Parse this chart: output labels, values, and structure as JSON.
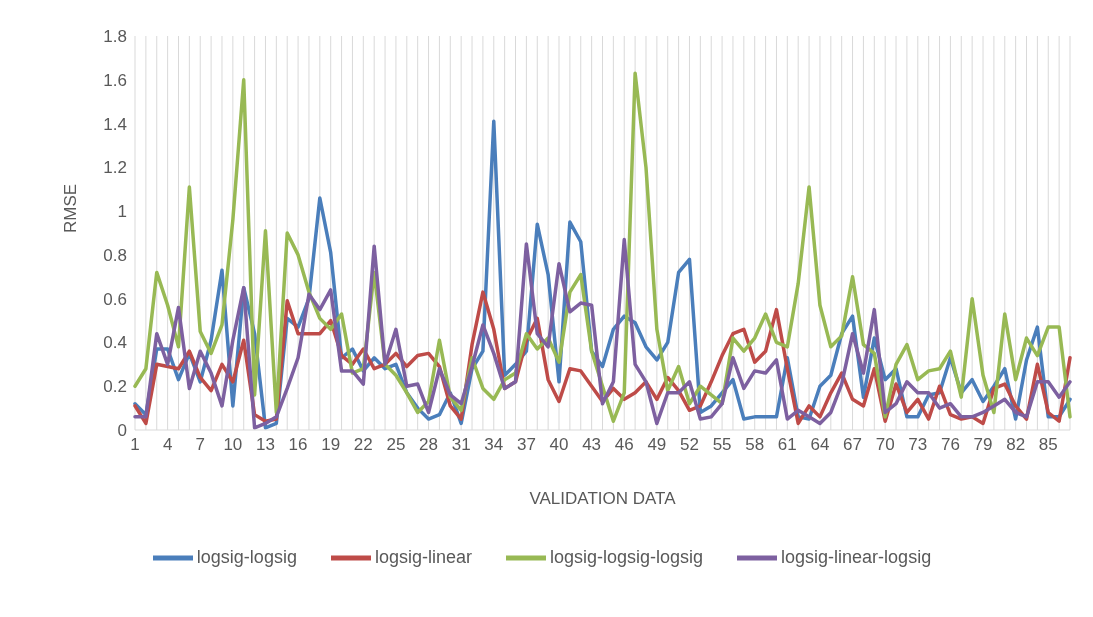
{
  "chart_data": {
    "type": "line",
    "xlabel": "VALIDATION DATA",
    "ylabel": "RMSE",
    "categories": [
      "1",
      null,
      null,
      "4",
      null,
      null,
      "7",
      null,
      null,
      "10",
      null,
      null,
      "13",
      null,
      null,
      "16",
      null,
      null,
      "19",
      null,
      null,
      "22",
      null,
      null,
      "25",
      null,
      null,
      "28",
      null,
      null,
      "31",
      null,
      null,
      "34",
      null,
      null,
      "37",
      null,
      null,
      "40",
      null,
      null,
      "43",
      null,
      null,
      "46",
      null,
      null,
      "49",
      null,
      null,
      "52",
      null,
      null,
      "55",
      null,
      null,
      "58",
      null,
      null,
      "61",
      null,
      null,
      "64",
      null,
      null,
      "67",
      null,
      null,
      "70",
      null,
      null,
      "73",
      null,
      null,
      "76",
      null,
      null,
      "79",
      null,
      null,
      "82",
      null,
      null,
      "85",
      null,
      null
    ],
    "series": [
      {
        "name": "logsig-logsig",
        "color": "#4a7ebb",
        "values": [
          0.12,
          0.07,
          0.37,
          0.37,
          0.23,
          0.35,
          0.22,
          0.41,
          0.73,
          0.11,
          0.65,
          0.44,
          0.01,
          0.03,
          0.51,
          0.47,
          0.6,
          1.06,
          0.81,
          0.33,
          0.37,
          0.27,
          0.33,
          0.28,
          0.3,
          0.17,
          0.1,
          0.05,
          0.07,
          0.17,
          0.03,
          0.28,
          0.36,
          1.41,
          0.25,
          0.3,
          0.36,
          0.94,
          0.71,
          0.22,
          0.95,
          0.86,
          0.36,
          0.29,
          0.46,
          0.52,
          0.49,
          0.38,
          0.32,
          0.4,
          0.72,
          0.78,
          0.08,
          0.11,
          0.17,
          0.23,
          0.05,
          0.06,
          0.06,
          0.06,
          0.33,
          0.06,
          0.05,
          0.2,
          0.25,
          0.44,
          0.52,
          0.15,
          0.42,
          0.23,
          0.28,
          0.06,
          0.06,
          0.16,
          0.17,
          0.33,
          0.17,
          0.23,
          0.13,
          0.2,
          0.28,
          0.05,
          0.32,
          0.47,
          0.06,
          0.06,
          0.14
        ]
      },
      {
        "name": "logsig-linear",
        "color": "#be4b48",
        "values": [
          0.11,
          0.03,
          0.3,
          0.29,
          0.28,
          0.36,
          0.24,
          0.18,
          0.3,
          0.22,
          0.41,
          0.07,
          0.04,
          0.05,
          0.59,
          0.44,
          0.44,
          0.44,
          0.5,
          0.34,
          0.3,
          0.37,
          0.28,
          0.3,
          0.35,
          0.29,
          0.34,
          0.35,
          0.29,
          0.11,
          0.05,
          0.39,
          0.63,
          0.46,
          0.19,
          0.22,
          0.41,
          0.51,
          0.23,
          0.13,
          0.28,
          0.27,
          0.2,
          0.13,
          0.19,
          0.14,
          0.17,
          0.22,
          0.14,
          0.24,
          0.18,
          0.09,
          0.11,
          0.22,
          0.34,
          0.44,
          0.46,
          0.31,
          0.36,
          0.55,
          0.28,
          0.03,
          0.11,
          0.06,
          0.17,
          0.26,
          0.14,
          0.11,
          0.28,
          0.04,
          0.21,
          0.08,
          0.14,
          0.05,
          0.2,
          0.07,
          0.05,
          0.06,
          0.03,
          0.19,
          0.21,
          0.11,
          0.05,
          0.3,
          0.08,
          0.04,
          0.33
        ]
      },
      {
        "name": "logsig-logsig-logsig",
        "color": "#98b954",
        "values": [
          0.2,
          0.28,
          0.72,
          0.57,
          0.38,
          1.11,
          0.45,
          0.35,
          0.48,
          0.96,
          1.6,
          0.16,
          0.91,
          0.08,
          0.9,
          0.8,
          0.63,
          0.51,
          0.46,
          0.53,
          0.26,
          0.28,
          0.72,
          0.3,
          0.25,
          0.17,
          0.08,
          0.13,
          0.41,
          0.15,
          0.09,
          0.33,
          0.19,
          0.14,
          0.23,
          0.26,
          0.44,
          0.37,
          0.42,
          0.31,
          0.63,
          0.71,
          0.36,
          0.2,
          0.04,
          0.17,
          1.63,
          1.2,
          0.46,
          0.18,
          0.29,
          0.12,
          0.2,
          0.16,
          0.12,
          0.42,
          0.36,
          0.42,
          0.53,
          0.4,
          0.38,
          0.67,
          1.11,
          0.57,
          0.38,
          0.43,
          0.7,
          0.39,
          0.35,
          0.06,
          0.3,
          0.39,
          0.23,
          0.27,
          0.28,
          0.36,
          0.15,
          0.6,
          0.25,
          0.08,
          0.53,
          0.23,
          0.42,
          0.34,
          0.47,
          0.47,
          0.06
        ]
      },
      {
        "name": "logsig-linear-logsig",
        "color": "#7d60a0",
        "values": [
          0.06,
          0.06,
          0.44,
          0.3,
          0.56,
          0.19,
          0.36,
          0.26,
          0.11,
          0.41,
          0.65,
          0.01,
          0.03,
          0.06,
          0.19,
          0.33,
          0.62,
          0.55,
          0.64,
          0.27,
          0.27,
          0.21,
          0.84,
          0.3,
          0.46,
          0.2,
          0.21,
          0.08,
          0.28,
          0.16,
          0.12,
          0.29,
          0.48,
          0.35,
          0.19,
          0.22,
          0.85,
          0.44,
          0.38,
          0.76,
          0.54,
          0.58,
          0.57,
          0.12,
          0.22,
          0.87,
          0.3,
          0.22,
          0.03,
          0.17,
          0.17,
          0.22,
          0.05,
          0.06,
          0.12,
          0.33,
          0.19,
          0.27,
          0.26,
          0.32,
          0.05,
          0.09,
          0.06,
          0.03,
          0.08,
          0.21,
          0.44,
          0.26,
          0.55,
          0.08,
          0.12,
          0.22,
          0.17,
          0.17,
          0.1,
          0.12,
          0.06,
          0.06,
          0.08,
          0.11,
          0.14,
          0.08,
          0.06,
          0.22,
          0.22,
          0.15,
          0.22
        ]
      }
    ],
    "ylim": [
      0,
      1.8
    ],
    "yticks": [
      0,
      0.2,
      0.4,
      0.6,
      0.8,
      1,
      1.2,
      1.4,
      1.6,
      1.8
    ],
    "grid": "x",
    "legend": "bottom"
  }
}
